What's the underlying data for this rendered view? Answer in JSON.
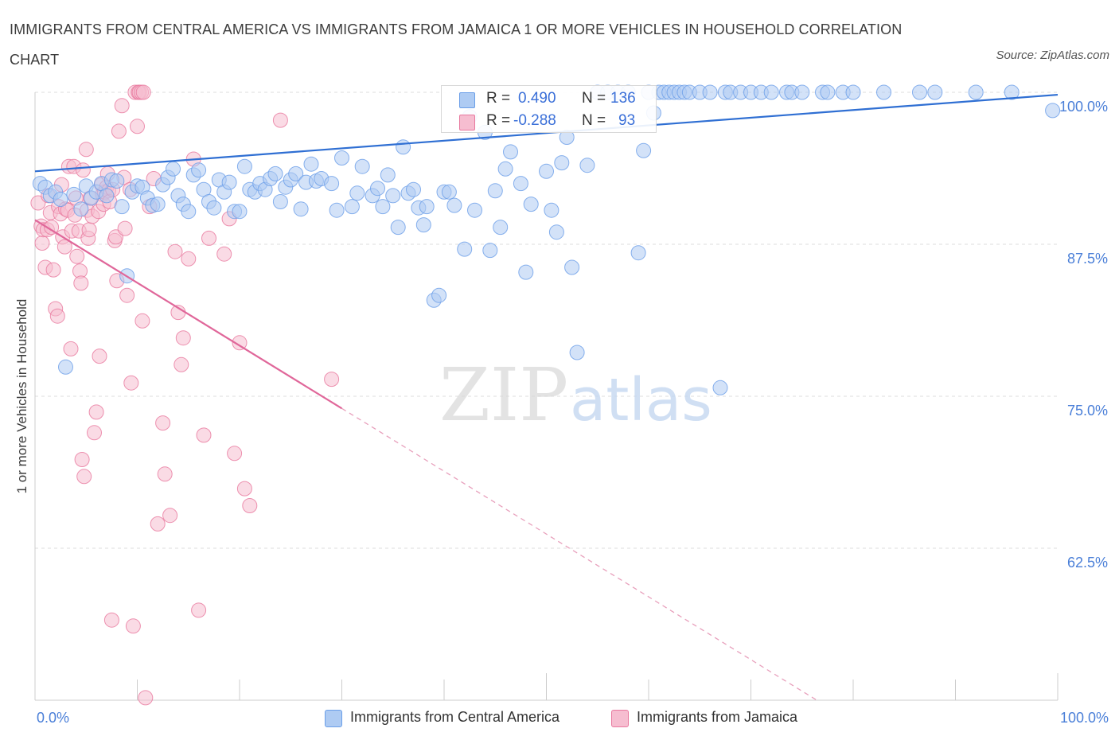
{
  "title": "IMMIGRANTS FROM CENTRAL AMERICA VS IMMIGRANTS FROM JAMAICA 1 OR MORE VEHICLES IN HOUSEHOLD CORRELATION CHART",
  "source": "Source: ZipAtlas.com",
  "watermark": {
    "zip": "ZIP",
    "atlas": "atlas"
  },
  "legend": {
    "r_label": "R =",
    "n_label": "N =",
    "series": [
      {
        "name": "Immigrants from Central America",
        "r": "0.490",
        "n": "136",
        "color": "#6a9ee8",
        "fill": "#aecbf3"
      },
      {
        "name": "Immigrants from Jamaica",
        "r": "-0.288",
        "n": "93",
        "color": "#e8789e",
        "fill": "#f6bdd0"
      }
    ]
  },
  "chart_data": {
    "type": "scatter",
    "title": "IMMIGRANTS FROM CENTRAL AMERICA VS IMMIGRANTS FROM JAMAICA 1 OR MORE VEHICLES IN HOUSEHOLD CORRELATION CHART",
    "xlabel": "",
    "ylabel": "1 or more Vehicles in Household",
    "xlim": [
      0,
      100
    ],
    "ylim": [
      50,
      100
    ],
    "x_tick_labels": [
      "0.0%",
      "100.0%"
    ],
    "y_ticks": [
      62.5,
      75.0,
      87.5,
      100.0
    ],
    "y_tick_labels": [
      "62.5%",
      "75.0%",
      "87.5%",
      "100.0%"
    ],
    "grid": true,
    "legend_placement": "bottom",
    "series": [
      {
        "name": "Immigrants from Central America",
        "color": "#6a9ee8",
        "trend": {
          "x": [
            0,
            100
          ],
          "y": [
            93.5,
            99.8
          ]
        },
        "points": [
          [
            0.5,
            92.5
          ],
          [
            1.0,
            92.2
          ],
          [
            1.5,
            91.5
          ],
          [
            2.0,
            91.8
          ],
          [
            2.5,
            91.2
          ],
          [
            3.0,
            77.4
          ],
          [
            3.8,
            91.6
          ],
          [
            4.5,
            90.4
          ],
          [
            5.0,
            92.3
          ],
          [
            5.5,
            91.3
          ],
          [
            6.0,
            91.8
          ],
          [
            6.5,
            92.5
          ],
          [
            7.0,
            91.5
          ],
          [
            7.5,
            92.8
          ],
          [
            8.0,
            92.7
          ],
          [
            8.5,
            90.6
          ],
          [
            9.0,
            84.9
          ],
          [
            9.5,
            91.8
          ],
          [
            10.0,
            92.3
          ],
          [
            10.5,
            92.2
          ],
          [
            11.0,
            91.3
          ],
          [
            11.5,
            90.7
          ],
          [
            12.0,
            90.8
          ],
          [
            12.5,
            92.4
          ],
          [
            13.0,
            93.0
          ],
          [
            13.5,
            93.7
          ],
          [
            14.0,
            91.5
          ],
          [
            14.5,
            90.8
          ],
          [
            15.0,
            90.2
          ],
          [
            15.5,
            93.2
          ],
          [
            16.0,
            93.6
          ],
          [
            16.5,
            92.0
          ],
          [
            17.0,
            91.0
          ],
          [
            17.5,
            90.5
          ],
          [
            18.0,
            92.8
          ],
          [
            18.5,
            91.8
          ],
          [
            19.0,
            92.6
          ],
          [
            19.5,
            90.2
          ],
          [
            20.0,
            90.2
          ],
          [
            20.5,
            93.9
          ],
          [
            21.0,
            92.0
          ],
          [
            21.5,
            91.8
          ],
          [
            22.0,
            92.5
          ],
          [
            22.5,
            92.0
          ],
          [
            23.0,
            92.9
          ],
          [
            23.5,
            93.3
          ],
          [
            24.0,
            91.0
          ],
          [
            24.5,
            92.2
          ],
          [
            25.0,
            92.8
          ],
          [
            25.5,
            93.3
          ],
          [
            26.0,
            90.4
          ],
          [
            26.5,
            92.6
          ],
          [
            27.0,
            94.1
          ],
          [
            27.5,
            92.7
          ],
          [
            28.0,
            92.9
          ],
          [
            29.0,
            92.5
          ],
          [
            29.5,
            90.3
          ],
          [
            30.0,
            94.6
          ],
          [
            31.0,
            90.6
          ],
          [
            31.5,
            91.7
          ],
          [
            32.0,
            93.9
          ],
          [
            33.0,
            91.5
          ],
          [
            33.5,
            92.1
          ],
          [
            34.0,
            90.6
          ],
          [
            34.5,
            93.2
          ],
          [
            35.0,
            91.5
          ],
          [
            35.5,
            88.9
          ],
          [
            36.0,
            95.5
          ],
          [
            36.5,
            91.7
          ],
          [
            37.0,
            92.0
          ],
          [
            37.5,
            90.5
          ],
          [
            38.0,
            89.1
          ],
          [
            38.3,
            90.6
          ],
          [
            39.0,
            82.9
          ],
          [
            39.5,
            83.3
          ],
          [
            40.0,
            91.8
          ],
          [
            40.5,
            91.8
          ],
          [
            41.0,
            90.7
          ],
          [
            42.0,
            87.1
          ],
          [
            42.5,
            98.0
          ],
          [
            43.0,
            90.3
          ],
          [
            44.0,
            96.7
          ],
          [
            44.5,
            87.0
          ],
          [
            45.0,
            91.9
          ],
          [
            45.5,
            88.9
          ],
          [
            46.0,
            93.7
          ],
          [
            46.5,
            95.1
          ],
          [
            47.5,
            92.5
          ],
          [
            48.0,
            85.2
          ],
          [
            48.5,
            90.8
          ],
          [
            50.0,
            93.5
          ],
          [
            50.5,
            90.3
          ],
          [
            51.0,
            88.5
          ],
          [
            51.5,
            94.2
          ],
          [
            52.0,
            96.3
          ],
          [
            52.5,
            85.6
          ],
          [
            53.0,
            78.6
          ],
          [
            54.0,
            94.0
          ],
          [
            55.0,
            100.0
          ],
          [
            56.0,
            100.0
          ],
          [
            57.0,
            100.0
          ],
          [
            58.0,
            100.0
          ],
          [
            59.0,
            86.8
          ],
          [
            59.5,
            95.2
          ],
          [
            60.0,
            100.0
          ],
          [
            60.5,
            98.3
          ],
          [
            61.0,
            100.0
          ],
          [
            61.5,
            100.0
          ],
          [
            62.0,
            100.0
          ],
          [
            62.5,
            100.0
          ],
          [
            63.0,
            100.0
          ],
          [
            63.5,
            100.0
          ],
          [
            64.0,
            100.0
          ],
          [
            65.0,
            100.0
          ],
          [
            66.0,
            100.0
          ],
          [
            67.0,
            75.7
          ],
          [
            67.5,
            100.0
          ],
          [
            68.0,
            100.0
          ],
          [
            69.0,
            100.0
          ],
          [
            70.0,
            100.0
          ],
          [
            71.0,
            100.0
          ],
          [
            72.0,
            100.0
          ],
          [
            73.5,
            100.0
          ],
          [
            74.0,
            100.0
          ],
          [
            75.0,
            100.0
          ],
          [
            77.0,
            100.0
          ],
          [
            77.5,
            100.0
          ],
          [
            79.0,
            100.0
          ],
          [
            80.0,
            100.0
          ],
          [
            83.0,
            100.0
          ],
          [
            86.5,
            100.0
          ],
          [
            88.0,
            100.0
          ],
          [
            92.0,
            100.0
          ],
          [
            95.5,
            100.0
          ],
          [
            99.5,
            98.5
          ]
        ]
      },
      {
        "name": "Immigrants from Jamaica",
        "color": "#e8789e",
        "trend": {
          "x": [
            0,
            30
          ],
          "y": [
            89.5,
            74.0
          ]
        },
        "points": [
          [
            0.3,
            90.9
          ],
          [
            0.6,
            89.0
          ],
          [
            0.7,
            87.6
          ],
          [
            0.8,
            88.7
          ],
          [
            1.0,
            85.6
          ],
          [
            1.2,
            88.7
          ],
          [
            1.3,
            91.5
          ],
          [
            1.5,
            90.1
          ],
          [
            1.6,
            88.9
          ],
          [
            1.8,
            85.4
          ],
          [
            2.0,
            82.2
          ],
          [
            2.2,
            81.6
          ],
          [
            2.3,
            90.6
          ],
          [
            2.5,
            90.0
          ],
          [
            2.6,
            92.4
          ],
          [
            2.7,
            88.1
          ],
          [
            2.9,
            87.3
          ],
          [
            3.0,
            90.4
          ],
          [
            3.2,
            90.3
          ],
          [
            3.3,
            93.9
          ],
          [
            3.5,
            78.9
          ],
          [
            3.6,
            88.6
          ],
          [
            3.8,
            93.9
          ],
          [
            3.9,
            89.9
          ],
          [
            4.0,
            91.3
          ],
          [
            4.1,
            86.5
          ],
          [
            4.3,
            88.6
          ],
          [
            4.4,
            85.3
          ],
          [
            4.5,
            84.3
          ],
          [
            4.6,
            69.8
          ],
          [
            4.7,
            93.6
          ],
          [
            4.8,
            68.4
          ],
          [
            5.0,
            95.3
          ],
          [
            5.1,
            90.3
          ],
          [
            5.2,
            88.0
          ],
          [
            5.3,
            88.7
          ],
          [
            5.4,
            91.3
          ],
          [
            5.6,
            89.8
          ],
          [
            5.8,
            72.0
          ],
          [
            6.0,
            73.7
          ],
          [
            6.2,
            90.2
          ],
          [
            6.3,
            78.3
          ],
          [
            6.5,
            92.4
          ],
          [
            6.6,
            91.6
          ],
          [
            6.7,
            90.8
          ],
          [
            6.8,
            91.8
          ],
          [
            7.0,
            92.2
          ],
          [
            7.1,
            93.3
          ],
          [
            7.2,
            91.9
          ],
          [
            7.3,
            91.0
          ],
          [
            7.5,
            56.6
          ],
          [
            7.6,
            92.0
          ],
          [
            7.8,
            87.8
          ],
          [
            7.9,
            88.1
          ],
          [
            8.0,
            84.5
          ],
          [
            8.2,
            96.8
          ],
          [
            8.5,
            98.9
          ],
          [
            8.7,
            93.0
          ],
          [
            8.8,
            88.8
          ],
          [
            9.0,
            83.3
          ],
          [
            9.3,
            92.0
          ],
          [
            9.4,
            76.1
          ],
          [
            9.6,
            56.1
          ],
          [
            9.8,
            100.0
          ],
          [
            10.0,
            97.2
          ],
          [
            10.1,
            100.0
          ],
          [
            10.2,
            100.0
          ],
          [
            10.4,
            100.0
          ],
          [
            10.5,
            81.2
          ],
          [
            10.6,
            100.0
          ],
          [
            10.8,
            50.2
          ],
          [
            11.2,
            90.6
          ],
          [
            11.6,
            92.9
          ],
          [
            12.0,
            64.5
          ],
          [
            12.5,
            72.8
          ],
          [
            12.7,
            68.6
          ],
          [
            13.2,
            65.2
          ],
          [
            13.7,
            86.9
          ],
          [
            14.0,
            81.9
          ],
          [
            14.3,
            77.6
          ],
          [
            14.5,
            79.8
          ],
          [
            15.0,
            86.3
          ],
          [
            15.5,
            94.5
          ],
          [
            16.0,
            57.4
          ],
          [
            16.5,
            71.8
          ],
          [
            17.0,
            88.0
          ],
          [
            18.5,
            86.7
          ],
          [
            19.0,
            89.6
          ],
          [
            19.5,
            70.3
          ],
          [
            20.0,
            79.4
          ],
          [
            20.5,
            67.4
          ],
          [
            21.0,
            66.0
          ],
          [
            24.0,
            97.7
          ],
          [
            29.0,
            76.4
          ]
        ]
      }
    ]
  }
}
